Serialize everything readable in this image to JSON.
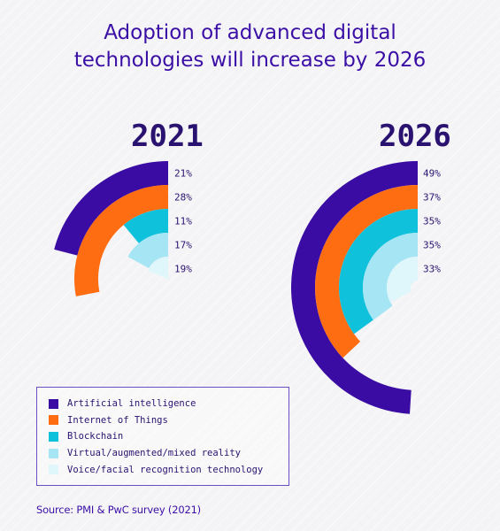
{
  "chart_data": {
    "type": "radial-bar",
    "title_lines": [
      "Adoption of advanced digital",
      "technologies will increase by 2026"
    ],
    "series": [
      {
        "name": "Artificial intelligence",
        "color": "#3a0ca3"
      },
      {
        "name": "Internet of Things",
        "color": "#ff6d12"
      },
      {
        "name": "Blockchain",
        "color": "#0fc1db"
      },
      {
        "name": "Virtual/augmented/mixed reality",
        "color": "#a6e6f4"
      },
      {
        "name": "Voice/facial recognition technology",
        "color": "#dff6fb"
      }
    ],
    "charts": [
      {
        "year": "2021",
        "values": [
          21,
          28,
          11,
          17,
          19
        ]
      },
      {
        "year": "2026",
        "values": [
          49,
          37,
          35,
          35,
          33
        ]
      }
    ],
    "value_suffix": "%"
  },
  "source": "Source: PMI & PwC survey (2021)"
}
